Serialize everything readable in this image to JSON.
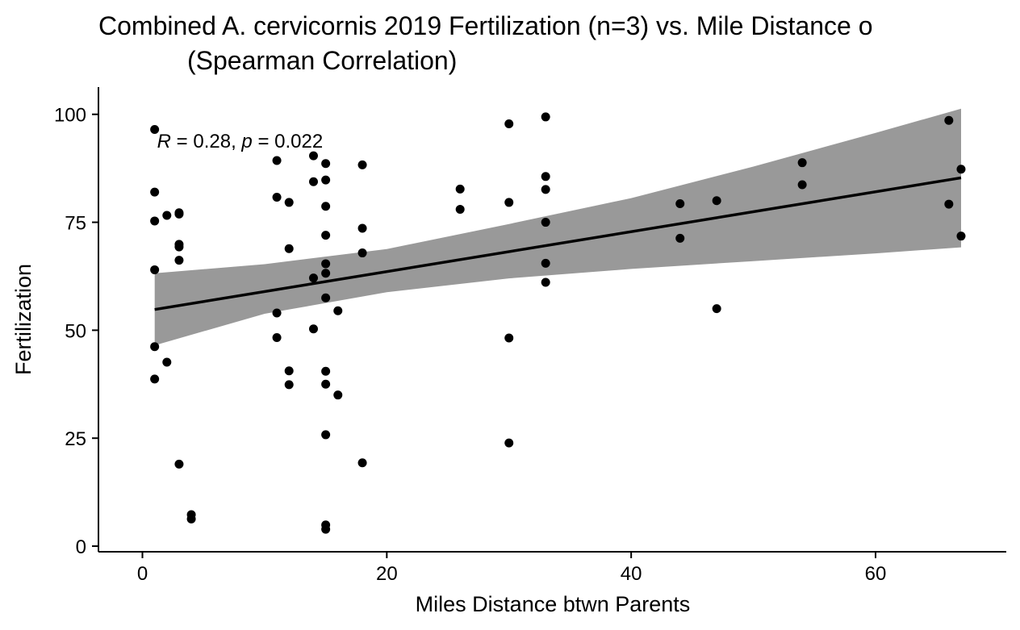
{
  "chart_data": {
    "type": "scatter",
    "title_line1": "Combined A. cervicornis 2019 Fertilization (n=3) vs. Mile Distance o",
    "title_line2": "(Spearman Correlation)",
    "xlabel": "Miles Distance btwn Parents",
    "ylabel": "Fertilization",
    "xlim": [
      -3.6,
      70.7
    ],
    "ylim": [
      -1.3,
      106.3
    ],
    "xticks": [
      0,
      20,
      40,
      60
    ],
    "yticks": [
      0,
      25,
      50,
      75,
      100
    ],
    "annotation": {
      "r_label": "R",
      "r_text": " = 0.28, ",
      "p_label": "p",
      "p_text": " = 0.022",
      "x": 1.2,
      "y": 94.0
    },
    "points": [
      {
        "x": 1,
        "y": 96.5
      },
      {
        "x": 1,
        "y": 82.0
      },
      {
        "x": 1,
        "y": 75.3
      },
      {
        "x": 1,
        "y": 64.0
      },
      {
        "x": 1,
        "y": 46.2
      },
      {
        "x": 1,
        "y": 38.7
      },
      {
        "x": 2,
        "y": 76.6
      },
      {
        "x": 2,
        "y": 42.6
      },
      {
        "x": 3,
        "y": 77.2
      },
      {
        "x": 3,
        "y": 76.9
      },
      {
        "x": 3,
        "y": 69.9
      },
      {
        "x": 3,
        "y": 69.3
      },
      {
        "x": 3,
        "y": 66.2
      },
      {
        "x": 3,
        "y": 19.0
      },
      {
        "x": 4,
        "y": 7.3
      },
      {
        "x": 4,
        "y": 6.3
      },
      {
        "x": 11,
        "y": 89.3
      },
      {
        "x": 11,
        "y": 80.8
      },
      {
        "x": 11,
        "y": 54.0
      },
      {
        "x": 11,
        "y": 48.3
      },
      {
        "x": 12,
        "y": 79.6
      },
      {
        "x": 12,
        "y": 68.9
      },
      {
        "x": 12,
        "y": 40.6
      },
      {
        "x": 12,
        "y": 37.4
      },
      {
        "x": 14,
        "y": 90.4
      },
      {
        "x": 14,
        "y": 84.4
      },
      {
        "x": 14,
        "y": 62.1
      },
      {
        "x": 14,
        "y": 50.3
      },
      {
        "x": 15,
        "y": 88.6
      },
      {
        "x": 15,
        "y": 84.8
      },
      {
        "x": 15,
        "y": 78.7
      },
      {
        "x": 15,
        "y": 72.0
      },
      {
        "x": 15,
        "y": 65.4
      },
      {
        "x": 15,
        "y": 63.2
      },
      {
        "x": 15,
        "y": 57.5
      },
      {
        "x": 15,
        "y": 40.5
      },
      {
        "x": 15,
        "y": 37.5
      },
      {
        "x": 15,
        "y": 25.8
      },
      {
        "x": 15,
        "y": 4.9
      },
      {
        "x": 15,
        "y": 3.9
      },
      {
        "x": 16,
        "y": 54.5
      },
      {
        "x": 16,
        "y": 35.0
      },
      {
        "x": 18,
        "y": 88.3
      },
      {
        "x": 18,
        "y": 73.6
      },
      {
        "x": 18,
        "y": 67.9
      },
      {
        "x": 18,
        "y": 19.3
      },
      {
        "x": 26,
        "y": 82.7
      },
      {
        "x": 26,
        "y": 78.0
      },
      {
        "x": 30,
        "y": 97.8
      },
      {
        "x": 30,
        "y": 79.6
      },
      {
        "x": 30,
        "y": 48.2
      },
      {
        "x": 30,
        "y": 23.9
      },
      {
        "x": 33,
        "y": 99.4
      },
      {
        "x": 33,
        "y": 85.6
      },
      {
        "x": 33,
        "y": 82.6
      },
      {
        "x": 33,
        "y": 75.0
      },
      {
        "x": 33,
        "y": 65.5
      },
      {
        "x": 33,
        "y": 61.1
      },
      {
        "x": 44,
        "y": 79.3
      },
      {
        "x": 44,
        "y": 71.3
      },
      {
        "x": 47,
        "y": 80.0
      },
      {
        "x": 47,
        "y": 55.0
      },
      {
        "x": 54,
        "y": 88.8
      },
      {
        "x": 54,
        "y": 83.7
      },
      {
        "x": 66,
        "y": 98.6
      },
      {
        "x": 66,
        "y": 79.2
      },
      {
        "x": 67,
        "y": 87.3
      },
      {
        "x": 67,
        "y": 71.8
      }
    ],
    "regression": {
      "x": [
        1,
        67
      ],
      "y": [
        54.8,
        85.3
      ]
    },
    "confidence_band": {
      "x": [
        1,
        10,
        20,
        30,
        40,
        50,
        60,
        67
      ],
      "upper": [
        63.2,
        65.3,
        68.8,
        74.6,
        80.6,
        87.9,
        95.7,
        101.3
      ],
      "lower": [
        46.5,
        53.8,
        58.8,
        62.0,
        64.2,
        66.0,
        67.8,
        69.2
      ]
    }
  }
}
